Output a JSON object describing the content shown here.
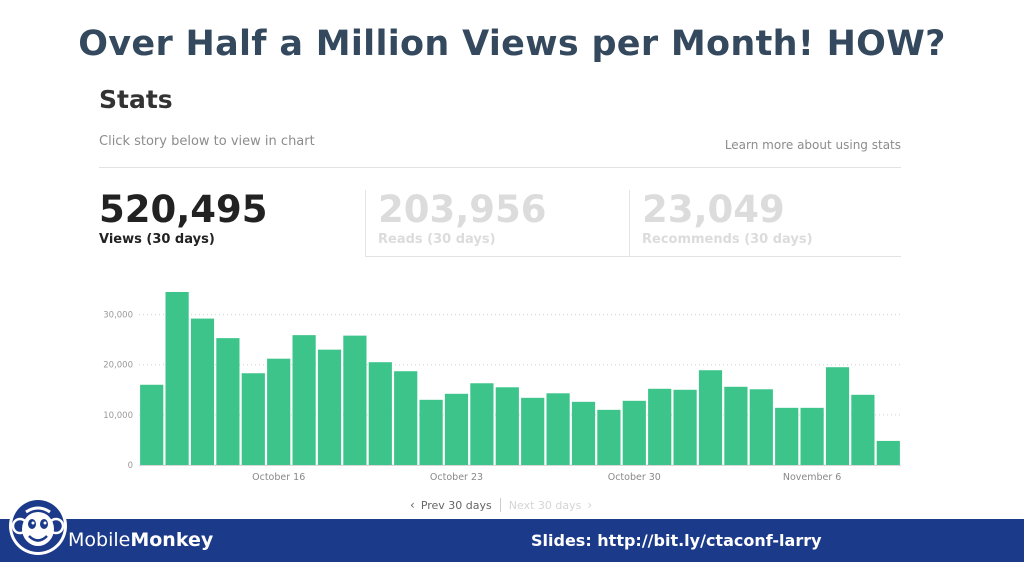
{
  "slide": {
    "title": "Over Half a Million Views per Month! HOW?"
  },
  "stats": {
    "heading": "Stats",
    "hint": "Click story below to view in chart",
    "learn_link": "Learn more about using stats",
    "metrics": [
      {
        "value": "520,495",
        "label": "Views (30 days)"
      },
      {
        "value": "203,956",
        "label": "Reads (30 days)"
      },
      {
        "value": "23,049",
        "label": "Recommends (30 days)"
      }
    ],
    "pager": {
      "prev": "Prev 30 days",
      "next": "Next 30 days"
    }
  },
  "chart_data": {
    "type": "bar",
    "title": "",
    "xlabel": "",
    "ylabel": "",
    "ylim": [
      0,
      35000
    ],
    "yticks": [
      "0",
      "10,000",
      "20,000",
      "30,000"
    ],
    "ytick_values": [
      0,
      10000,
      20000,
      30000
    ],
    "xtick_labels": [
      {
        "label": "October 16",
        "index": 5.5
      },
      {
        "label": "October 23",
        "index": 12.5
      },
      {
        "label": "October 30",
        "index": 19.5
      },
      {
        "label": "November 6",
        "index": 26.5
      }
    ],
    "grid": true,
    "color": "#3cc48a",
    "values": [
      16000,
      34500,
      29200,
      25300,
      18300,
      21200,
      25900,
      23000,
      25800,
      20500,
      18700,
      13000,
      14200,
      16300,
      15500,
      13400,
      14300,
      12600,
      11000,
      12800,
      15200,
      15000,
      18900,
      15600,
      15100,
      11400,
      11400,
      19500,
      14000,
      4800
    ]
  },
  "footer": {
    "brand_part1": "Mobile",
    "brand_part2": "Monkey",
    "slides_link": "Slides: http://bit.ly/ctaconf-larry",
    "logo_icon": "monkey-logo-icon",
    "bar_color": "#1c3a8a"
  }
}
